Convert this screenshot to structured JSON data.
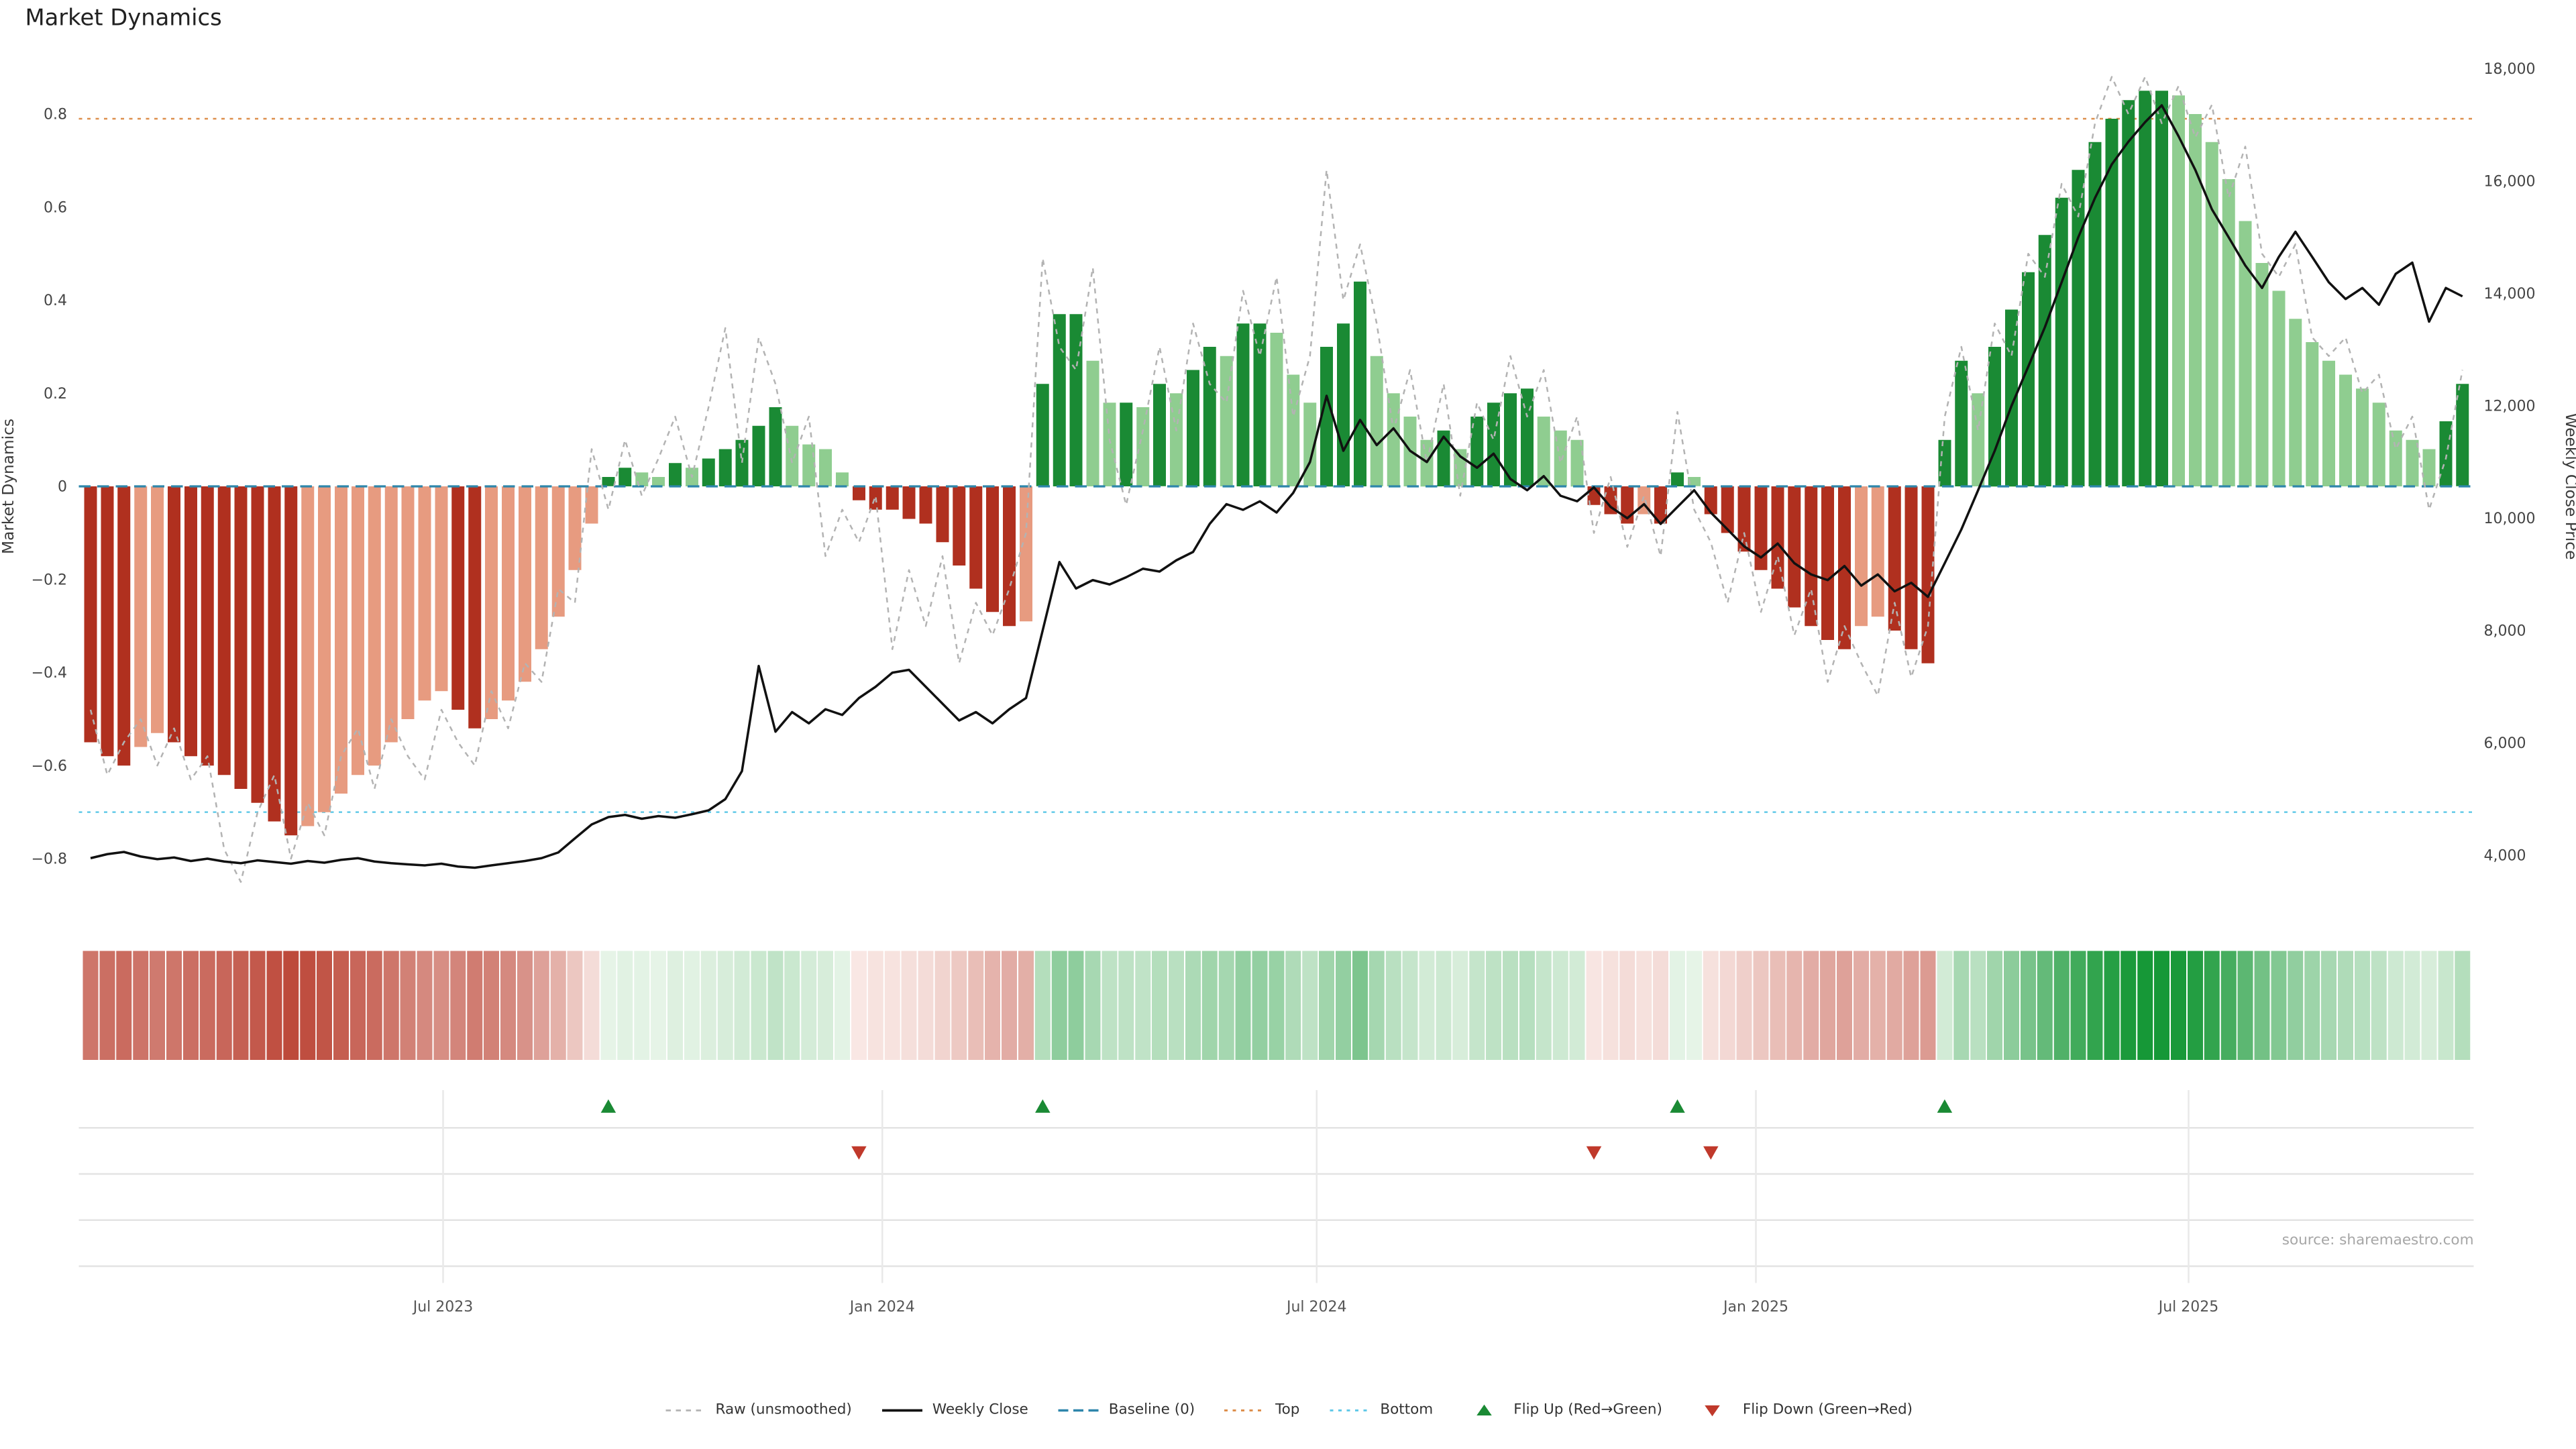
{
  "page": {
    "title": "Market Dynamics",
    "source": "source: sharemaestro.com"
  },
  "chart_data": {
    "type": "bar",
    "subtype": "bar+line+heatmap+flip-markers",
    "title": "Market Dynamics",
    "x_description": "143 weekly observations, approx. Feb 2023 to Oct 2025",
    "grid": "off in main panel, light gray grid in marker panel",
    "legend_position": "bottom center",
    "x_axis": {
      "ticks": [
        {
          "label": "Jul 2023",
          "week": 21.1
        },
        {
          "label": "Jan 2024",
          "week": 47.4
        },
        {
          "label": "Jul 2024",
          "week": 73.4
        },
        {
          "label": "Jan 2025",
          "week": 99.7
        },
        {
          "label": "Jul 2025",
          "week": 125.6
        }
      ]
    },
    "left_axis": {
      "label": "Market Dynamics",
      "range": [
        -0.93,
        0.93
      ],
      "ticks": [
        {
          "label": "0.8",
          "value": 0.8
        },
        {
          "label": "0.6",
          "value": 0.6
        },
        {
          "label": "0.4",
          "value": 0.4
        },
        {
          "label": "0.2",
          "value": 0.2
        },
        {
          "label": "0",
          "value": 0
        },
        {
          "label": "−0.2",
          "value": -0.2
        },
        {
          "label": "−0.4",
          "value": -0.4
        },
        {
          "label": "−0.6",
          "value": -0.6
        },
        {
          "label": "−0.8",
          "value": -0.8
        }
      ]
    },
    "right_axis": {
      "label": "Weekly Close Price",
      "range": [
        3100,
        18300
      ],
      "ticks": [
        {
          "label": "18,000",
          "value": 18000
        },
        {
          "label": "16,000",
          "value": 16000
        },
        {
          "label": "14,000",
          "value": 14000
        },
        {
          "label": "12,000",
          "value": 12000
        },
        {
          "label": "10,000",
          "value": 10000
        },
        {
          "label": "8,000",
          "value": 8000
        },
        {
          "label": "6,000",
          "value": 6000
        },
        {
          "label": "4,000",
          "value": 4000
        }
      ]
    },
    "reference_lines": {
      "baseline": 0,
      "top": 0.79,
      "bottom": -0.7
    },
    "series": {
      "dynamics": [
        -0.55,
        -0.58,
        -0.6,
        -0.56,
        -0.53,
        -0.55,
        -0.58,
        -0.6,
        -0.62,
        -0.65,
        -0.68,
        -0.72,
        -0.75,
        -0.73,
        -0.7,
        -0.66,
        -0.62,
        -0.6,
        -0.55,
        -0.5,
        -0.46,
        -0.44,
        -0.48,
        -0.52,
        -0.5,
        -0.46,
        -0.42,
        -0.35,
        -0.28,
        -0.18,
        -0.08,
        0.02,
        0.04,
        0.03,
        0.02,
        0.05,
        0.04,
        0.06,
        0.08,
        0.1,
        0.13,
        0.17,
        0.13,
        0.09,
        0.08,
        0.03,
        -0.03,
        -0.05,
        -0.05,
        -0.07,
        -0.08,
        -0.12,
        -0.17,
        -0.22,
        -0.27,
        -0.3,
        -0.29,
        0.22,
        0.37,
        0.37,
        0.27,
        0.18,
        0.18,
        0.17,
        0.22,
        0.2,
        0.25,
        0.3,
        0.28,
        0.35,
        0.35,
        0.33,
        0.24,
        0.18,
        0.3,
        0.35,
        0.44,
        0.28,
        0.2,
        0.15,
        0.1,
        0.12,
        0.08,
        0.15,
        0.18,
        0.2,
        0.21,
        0.15,
        0.12,
        0.1,
        -0.04,
        -0.06,
        -0.08,
        -0.06,
        -0.08,
        0.03,
        0.02,
        -0.06,
        -0.1,
        -0.14,
        -0.18,
        -0.22,
        -0.26,
        -0.3,
        -0.33,
        -0.35,
        -0.3,
        -0.28,
        -0.31,
        -0.35,
        -0.38,
        0.1,
        0.27,
        0.2,
        0.3,
        0.38,
        0.46,
        0.54,
        0.62,
        0.68,
        0.74,
        0.79,
        0.83,
        0.85,
        0.85,
        0.84,
        0.8,
        0.74,
        0.66,
        0.57,
        0.48,
        0.42,
        0.36,
        0.31,
        0.27,
        0.24,
        0.21,
        0.18,
        0.12,
        0.1,
        0.08,
        0.14,
        0.22
      ],
      "raw": [
        -0.48,
        -0.62,
        -0.55,
        -0.5,
        -0.6,
        -0.52,
        -0.63,
        -0.58,
        -0.78,
        -0.85,
        -0.7,
        -0.62,
        -0.8,
        -0.68,
        -0.75,
        -0.58,
        -0.52,
        -0.65,
        -0.5,
        -0.58,
        -0.63,
        -0.48,
        -0.55,
        -0.6,
        -0.44,
        -0.52,
        -0.38,
        -0.42,
        -0.22,
        -0.25,
        0.08,
        -0.05,
        0.1,
        -0.02,
        0.06,
        0.15,
        0.02,
        0.17,
        0.34,
        0.05,
        0.32,
        0.22,
        0.05,
        0.15,
        -0.15,
        -0.05,
        -0.12,
        -0.02,
        -0.35,
        -0.18,
        -0.3,
        -0.15,
        -0.38,
        -0.25,
        -0.32,
        -0.22,
        -0.1,
        0.49,
        0.3,
        0.25,
        0.47,
        0.1,
        -0.04,
        0.12,
        0.3,
        0.12,
        0.35,
        0.22,
        0.18,
        0.42,
        0.28,
        0.45,
        0.15,
        0.28,
        0.68,
        0.4,
        0.52,
        0.35,
        0.12,
        0.25,
        0.05,
        0.22,
        -0.02,
        0.18,
        0.1,
        0.28,
        0.15,
        0.25,
        0.05,
        0.15,
        -0.1,
        0.02,
        -0.13,
        -0.02,
        -0.15,
        0.16,
        -0.05,
        -0.12,
        -0.25,
        -0.1,
        -0.27,
        -0.15,
        -0.32,
        -0.22,
        -0.42,
        -0.3,
        -0.38,
        -0.45,
        -0.25,
        -0.41,
        -0.3,
        0.15,
        0.3,
        0.12,
        0.35,
        0.28,
        0.5,
        0.45,
        0.65,
        0.58,
        0.78,
        0.88,
        0.8,
        0.88,
        0.78,
        0.86,
        0.75,
        0.82,
        0.62,
        0.73,
        0.5,
        0.45,
        0.52,
        0.32,
        0.28,
        0.32,
        0.2,
        0.24,
        0.08,
        0.15,
        -0.05,
        0.06,
        0.25
      ],
      "weekly_close": [
        3950,
        4020,
        4060,
        3980,
        3930,
        3960,
        3900,
        3940,
        3890,
        3860,
        3910,
        3880,
        3850,
        3900,
        3870,
        3920,
        3950,
        3890,
        3860,
        3840,
        3820,
        3850,
        3800,
        3780,
        3820,
        3860,
        3900,
        3950,
        4050,
        4300,
        4550,
        4680,
        4720,
        4650,
        4700,
        4670,
        4730,
        4800,
        5000,
        5500,
        7370,
        6200,
        6550,
        6350,
        6600,
        6500,
        6800,
        7000,
        7250,
        7300,
        7000,
        6700,
        6400,
        6550,
        6350,
        6600,
        6800,
        8000,
        9220,
        8750,
        8900,
        8820,
        8950,
        9100,
        9050,
        9250,
        9400,
        9900,
        10250,
        10150,
        10300,
        10100,
        10450,
        11000,
        12180,
        11200,
        11750,
        11300,
        11600,
        11200,
        11000,
        11450,
        11100,
        10900,
        11150,
        10700,
        10500,
        10750,
        10400,
        10300,
        10550,
        10200,
        10000,
        10250,
        9900,
        10200,
        10500,
        10100,
        9800,
        9500,
        9300,
        9550,
        9200,
        9000,
        8900,
        9150,
        8800,
        9000,
        8700,
        8850,
        8600,
        9200,
        9800,
        10500,
        11200,
        12000,
        12700,
        13400,
        14200,
        15000,
        15700,
        16300,
        16700,
        17050,
        17350,
        16800,
        16200,
        15500,
        15000,
        14500,
        14100,
        14650,
        15100,
        14650,
        14200,
        13900,
        14100,
        13800,
        14350,
        14550,
        13500,
        14100,
        13950
      ]
    },
    "flips": {
      "up_weeks": [
        31,
        57,
        95,
        111
      ],
      "down_weeks": [
        46,
        90,
        97
      ]
    },
    "legend": [
      {
        "key": "raw",
        "label": "Raw (unsmoothed)"
      },
      {
        "key": "close",
        "label": "Weekly Close"
      },
      {
        "key": "baseline",
        "label": "Baseline (0)"
      },
      {
        "key": "top",
        "label": "Top"
      },
      {
        "key": "bottom",
        "label": "Bottom"
      },
      {
        "key": "flip_up",
        "label": "Flip Up (Red→Green)"
      },
      {
        "key": "flip_down",
        "label": "Flip Down (Green→Red)"
      }
    ],
    "colors": {
      "bar_pos_strong": "#1a8a34",
      "bar_pos_weak": "#8fcd90",
      "bar_neg_strong": "#b0301f",
      "bar_neg_weak": "#e79b80",
      "close": "#111111",
      "raw": "#b3b3b3",
      "baseline": "#2e86ab",
      "top": "#dd8f4d",
      "bottom": "#62c9e8",
      "flip_up": "#1a8a34",
      "flip_down": "#c0392b"
    }
  }
}
